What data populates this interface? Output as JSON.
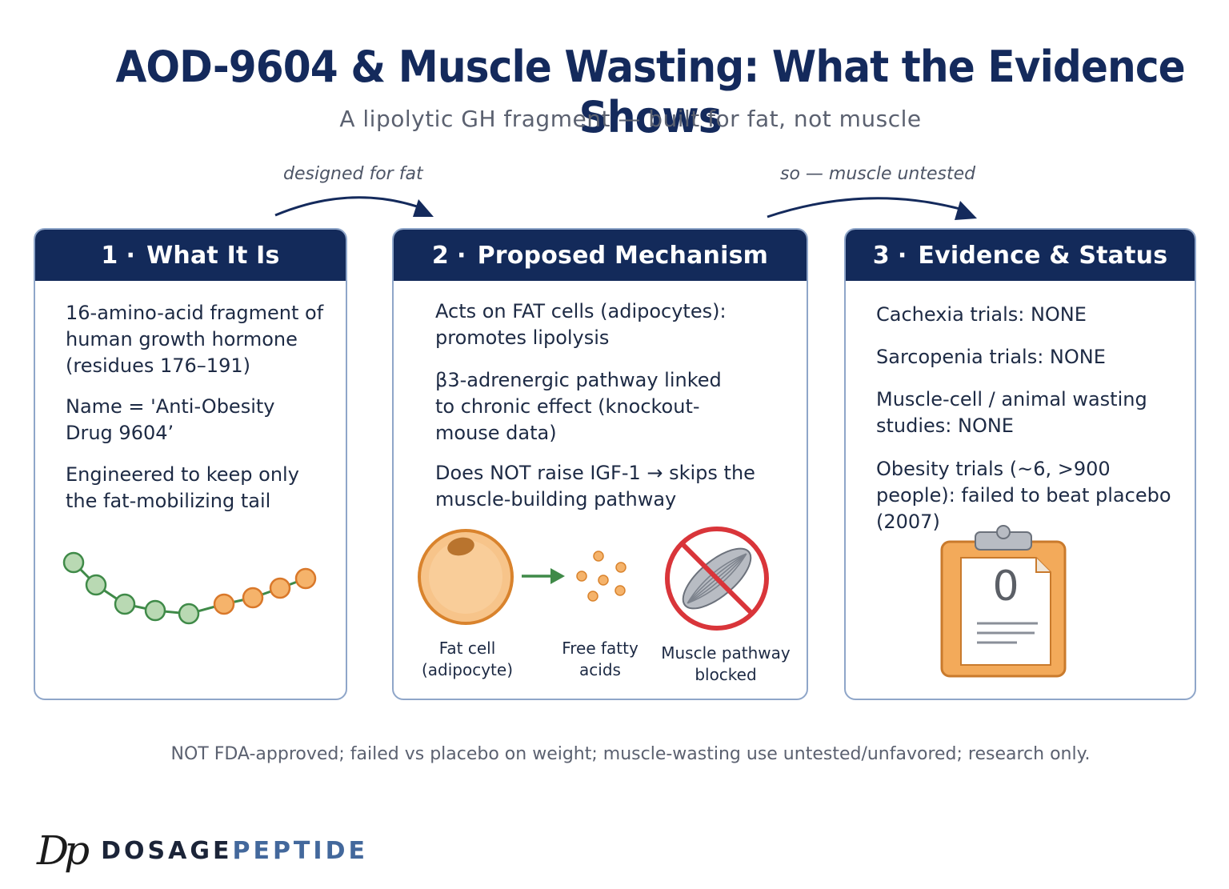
{
  "header": {
    "title": "AOD-9604 & Muscle Wasting: What the Evidence Shows",
    "subtitle": "A lipolytic GH fragment — built for fat, not muscle"
  },
  "connectors": [
    {
      "label": "designed for fat"
    },
    {
      "label": "so — muscle untested"
    }
  ],
  "panels": [
    {
      "number": "1",
      "separator": "·",
      "title": "What It Is",
      "points": [
        "16-amino-acid fragment of human growth hormone (residues 176–191)",
        "Name = 'Anti-Obesity Drug 9604’",
        "Engineered to keep only the fat-mobilizing tail"
      ],
      "illustration": "peptide-chain"
    },
    {
      "number": "2",
      "separator": "·",
      "title": "Proposed Mechanism",
      "points": [
        "Acts on FAT cells (adipocytes): promotes lipolysis",
        "β3-adrenergic pathway linked to chronic effect (knockout-mouse data)",
        "Does NOT raise IGF-1 → skips the muscle-building pathway"
      ],
      "captions": {
        "fat_cell": [
          "Fat cell",
          "(adipocyte)"
        ],
        "fatty_acids": [
          "Free fatty",
          "acids"
        ],
        "muscle": [
          "Muscle pathway",
          "blocked"
        ]
      }
    },
    {
      "number": "3",
      "separator": "·",
      "title": "Evidence & Status",
      "points": [
        "Cachexia trials: NONE",
        "Sarcopenia trials: NONE",
        "Muscle-cell / animal wasting studies: NONE",
        "Obesity trials (~6, >900 people): failed to beat placebo (2007)"
      ],
      "clipboard_value": "0"
    }
  ],
  "footer": {
    "note": "NOT FDA-approved; failed vs placebo on weight; muscle-wasting use untested/unfavored; research only."
  },
  "brand": {
    "logo": "Dp",
    "name_part1": "DOSAGE",
    "name_part2": "PEPTIDE"
  },
  "colors": {
    "navy": "#132a5a",
    "panel_border": "#8fa6c9",
    "green_bead": "#b9d9b3",
    "orange_bead": "#f5b36b",
    "fat_cell": "#f7c48a",
    "blocked_red": "#d9353a",
    "clipboard": "#f3aa5a"
  }
}
